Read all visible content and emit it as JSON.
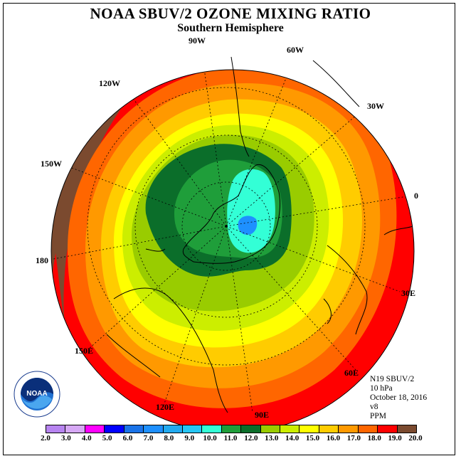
{
  "title": "NOAA SBUV/2 OZONE MIXING RATIO",
  "subtitle": "Southern Hemisphere",
  "longitude_labels": [
    "90W",
    "60W",
    "30W",
    "0",
    "30E",
    "60E",
    "90E",
    "120E",
    "150E",
    "180",
    "150W",
    "120W"
  ],
  "info": {
    "instrument": "N19 SBUV/2",
    "level": "10 hPa",
    "date": "October 18, 2016",
    "version": "v8",
    "units": "PPM"
  },
  "colorbar": {
    "ticks": [
      "2.0",
      "3.0",
      "4.0",
      "5.0",
      "6.0",
      "7.0",
      "8.0",
      "9.0",
      "10.0",
      "11.0",
      "12.0",
      "13.0",
      "14.0",
      "15.0",
      "16.0",
      "17.0",
      "18.0",
      "19.0",
      "20.0"
    ],
    "colors": [
      "#b784f0",
      "#d6a8f5",
      "#ff00ff",
      "#0000ff",
      "#1a73e8",
      "#1e90ff",
      "#22aaf0",
      "#26c6f5",
      "#33ffd6",
      "#1f9e3a",
      "#0b6e2a",
      "#99cc00",
      "#ccee00",
      "#ffff00",
      "#ffcc00",
      "#ff9900",
      "#ff6600",
      "#ff0000",
      "#7b4a2f"
    ]
  },
  "logo": {
    "text": "NOAA",
    "icon": "noaa-logo-icon"
  }
}
